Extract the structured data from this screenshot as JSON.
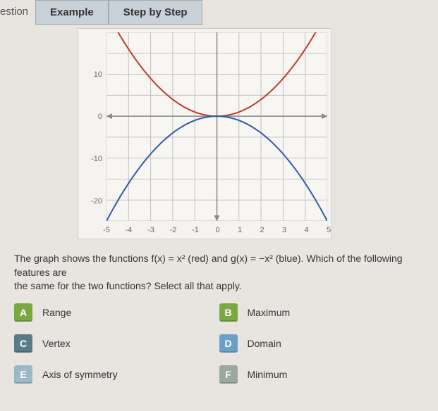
{
  "tabs": {
    "prefix": "estion",
    "tab1": "Example",
    "tab2": "Step by Step"
  },
  "chart": {
    "type": "line",
    "background_color": "#f8f6f2",
    "grid_color": "#c0c0c0",
    "axis_color": "#888888",
    "xlim": [
      -5,
      5
    ],
    "ylim": [
      -25,
      20
    ],
    "ytick_positions": [
      10,
      0,
      -10,
      -20
    ],
    "ytick_labels": [
      "10",
      "0",
      "-10",
      "-20"
    ],
    "xtick_positions": [
      -5,
      -4,
      -3,
      -2,
      -1,
      0,
      1,
      2,
      3,
      4,
      5
    ],
    "xtick_labels": [
      "-5",
      "-4",
      "-3",
      "-2",
      "-1",
      "0",
      "1",
      "2",
      "3",
      "4",
      "5"
    ],
    "series": [
      {
        "name": "f(x)=x²",
        "color": "#c0392b",
        "formula": "x*x",
        "line_width": 2
      },
      {
        "name": "g(x)=-x²",
        "color": "#2e5aac",
        "formula": "-x*x",
        "line_width": 2
      }
    ],
    "label_fontsize": 11,
    "label_color": "#666666"
  },
  "question": {
    "line1": "The graph shows the functions f(x) = x² (red) and g(x) = −x² (blue). Which of the following features are",
    "line2": "the same for the two functions? Select all that apply."
  },
  "options": {
    "a": {
      "letter": "A",
      "label": "Range",
      "color": "#7aa843"
    },
    "b": {
      "letter": "B",
      "label": "Maximum",
      "color": "#7aa843"
    },
    "c": {
      "letter": "C",
      "label": "Vertex",
      "color": "#5a7a8a"
    },
    "d": {
      "letter": "D",
      "label": "Domain",
      "color": "#6aa0c8"
    },
    "e": {
      "letter": "E",
      "label": "Axis of symmetry",
      "color": "#9ab8c8"
    },
    "f": {
      "letter": "F",
      "label": "Minimum",
      "color": "#9aa8a0"
    }
  }
}
